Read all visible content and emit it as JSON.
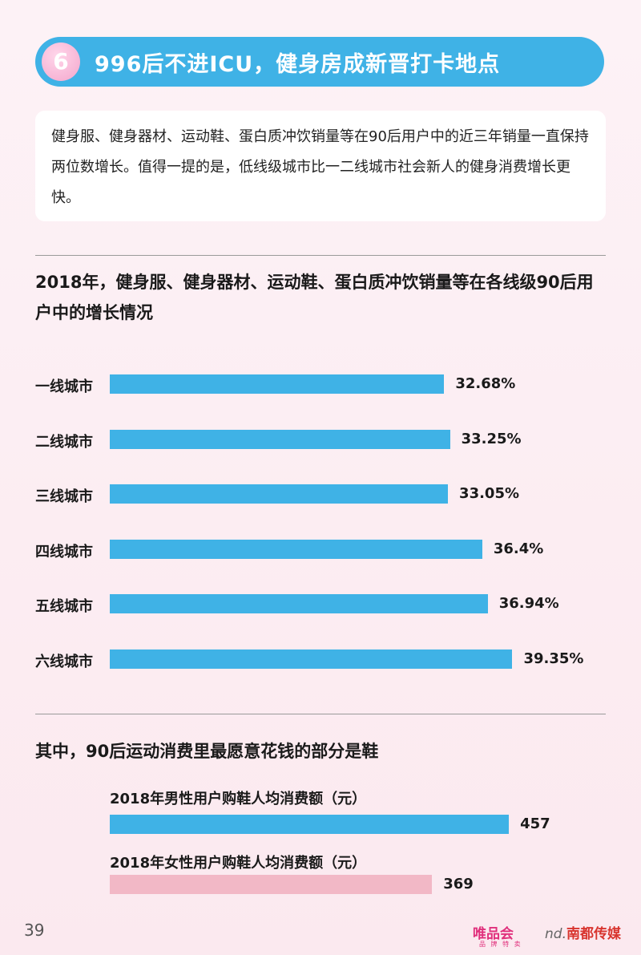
{
  "header": {
    "badge": "6",
    "title": "996后不进ICU，健身房成新晋打卡地点"
  },
  "intro": {
    "text": "健身服、健身器材、运动鞋、蛋白质冲饮销量等在90后用户中的近三年销量一直保持两位数增长。值得一提的是，低线级城市比一二线城市社会新人的健身消费增长更快。"
  },
  "chart_data": [
    {
      "type": "bar",
      "orientation": "horizontal",
      "title": "2018年，健身服、健身器材、运动鞋、蛋白质冲饮销量等在各线级90后用户中的增长情况",
      "categories": [
        "一线城市",
        "二线城市",
        "三线城市",
        "四线城市",
        "五线城市",
        "六线城市"
      ],
      "values": [
        32.68,
        33.25,
        33.05,
        36.4,
        36.94,
        39.35
      ],
      "value_labels": [
        "32.68%",
        "33.25%",
        "33.05%",
        "36.4%",
        "36.94%",
        "39.35%"
      ],
      "unit": "%",
      "color": "#3fb2e6"
    },
    {
      "type": "bar",
      "orientation": "horizontal",
      "title": "其中，90后运动消费里最愿意花钱的部分是鞋",
      "series": [
        {
          "name": "2018年男性用户购鞋人均消费额（元）",
          "value": 457,
          "label": "457",
          "color": "#3fb2e6"
        },
        {
          "name": "2018年女性用户购鞋人均消费额（元）",
          "value": 369,
          "label": "369",
          "color": "#f2b8c6"
        }
      ]
    }
  ],
  "footer": {
    "page_number": "39",
    "brand_vip": "唯品会",
    "brand_vip_sub": "品 牌 特 卖",
    "brand_nd_mark": "nd.",
    "brand_nd": "南都传媒"
  }
}
